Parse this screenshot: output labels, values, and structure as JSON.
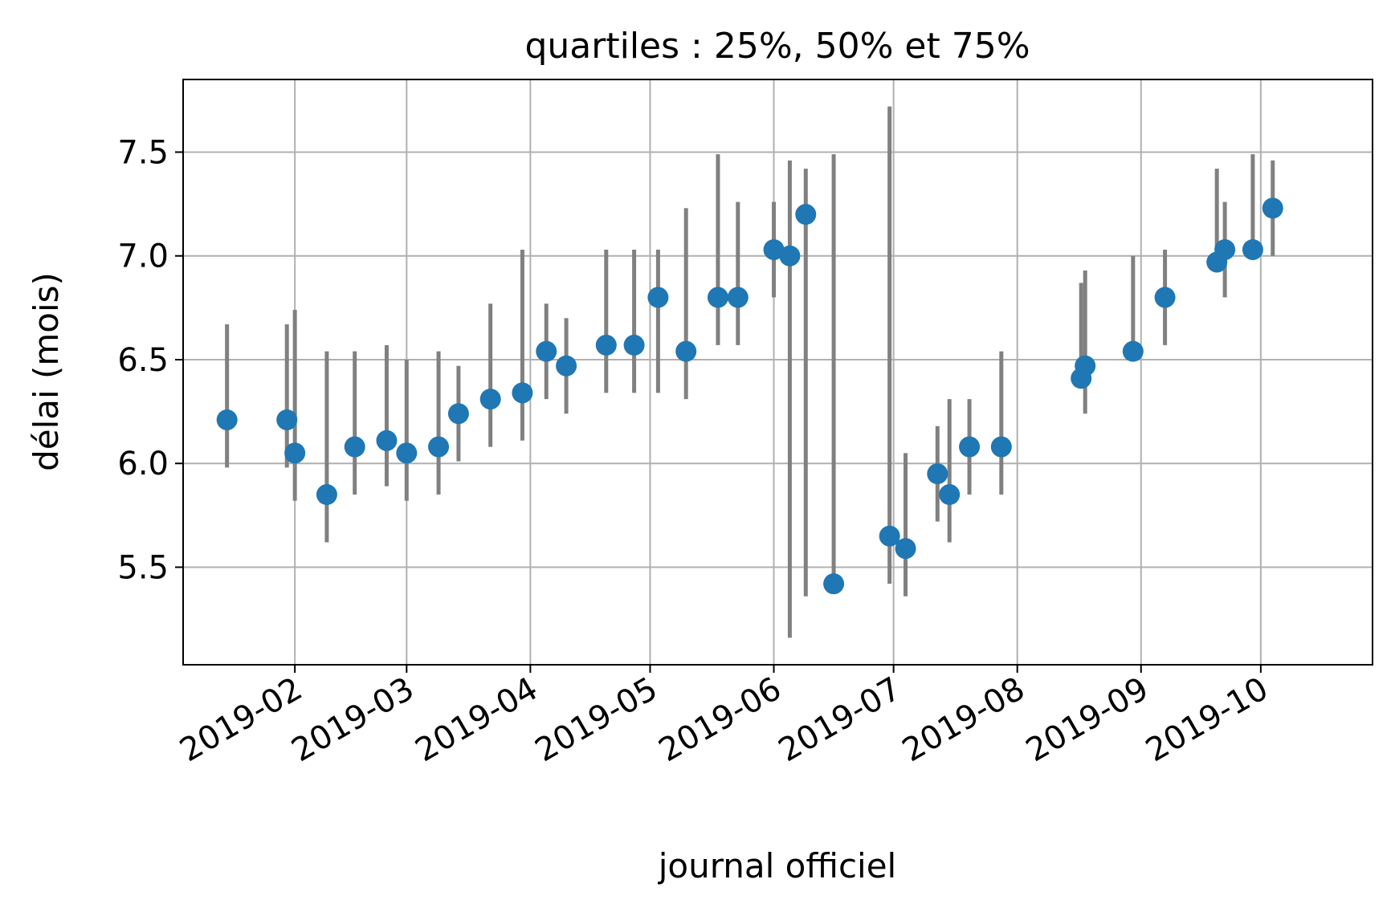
{
  "chart_data": {
    "type": "scatter",
    "title": "quartiles : 25%, 50% et 75%",
    "xlabel": "journal officiel",
    "ylabel": "délai (mois)",
    "x_ticks": [
      "2019-02",
      "2019-03",
      "2019-04",
      "2019-05",
      "2019-06",
      "2019-07",
      "2019-08",
      "2019-09",
      "2019-10"
    ],
    "x_range": [
      "2019-01-04",
      "2019-10-29"
    ],
    "y_ticks": [
      "5.5",
      "6.0",
      "6.5",
      "7.0",
      "7.5"
    ],
    "ylim": [
      5.03,
      7.85
    ],
    "grid": true,
    "colors": {
      "point": "#1f77b4",
      "errorbar": "#808080"
    },
    "series": [
      {
        "x": [
          "2019-01-15",
          "2019-01-30",
          "2019-02-01",
          "2019-02-09",
          "2019-02-16",
          "2019-02-24",
          "2019-03-01",
          "2019-03-09",
          "2019-03-14",
          "2019-03-22",
          "2019-03-30",
          "2019-04-05",
          "2019-04-10",
          "2019-04-20",
          "2019-04-27",
          "2019-05-03",
          "2019-05-10",
          "2019-05-18",
          "2019-05-23",
          "2019-06-01",
          "2019-06-05",
          "2019-06-09",
          "2019-06-16",
          "2019-06-30",
          "2019-07-04",
          "2019-07-12",
          "2019-07-15",
          "2019-07-20",
          "2019-07-28",
          "2019-08-17",
          "2019-08-18",
          "2019-08-30",
          "2019-09-07",
          "2019-09-20",
          "2019-09-22",
          "2019-09-29",
          "2019-10-04"
        ],
        "median": [
          6.21,
          6.21,
          6.05,
          5.85,
          6.08,
          6.11,
          6.05,
          6.08,
          6.24,
          6.31,
          6.34,
          6.54,
          6.47,
          6.57,
          6.57,
          6.8,
          6.54,
          6.8,
          6.8,
          7.03,
          7.0,
          7.2,
          5.42,
          5.65,
          5.59,
          5.95,
          5.85,
          6.08,
          6.08,
          6.41,
          6.47,
          6.54,
          6.8,
          6.97,
          7.03,
          7.03,
          7.23
        ],
        "q1": [
          5.98,
          5.98,
          5.82,
          5.62,
          5.85,
          5.89,
          5.82,
          5.85,
          6.01,
          6.08,
          6.11,
          6.31,
          6.24,
          6.34,
          6.34,
          6.34,
          6.31,
          6.57,
          6.57,
          6.8,
          5.16,
          5.36,
          5.42,
          5.42,
          5.36,
          5.72,
          5.62,
          5.85,
          5.85,
          6.41,
          6.24,
          6.54,
          6.57,
          6.97,
          6.8,
          7.03,
          7.0
        ],
        "q3": [
          6.67,
          6.67,
          6.74,
          6.54,
          6.54,
          6.57,
          6.5,
          6.54,
          6.47,
          6.77,
          7.03,
          6.77,
          6.7,
          7.03,
          7.03,
          7.03,
          7.23,
          7.49,
          7.26,
          7.26,
          7.46,
          7.42,
          7.49,
          7.72,
          6.05,
          6.18,
          6.31,
          6.31,
          6.54,
          6.87,
          6.93,
          7.0,
          7.03,
          7.42,
          7.26,
          7.49,
          7.46
        ]
      }
    ]
  }
}
